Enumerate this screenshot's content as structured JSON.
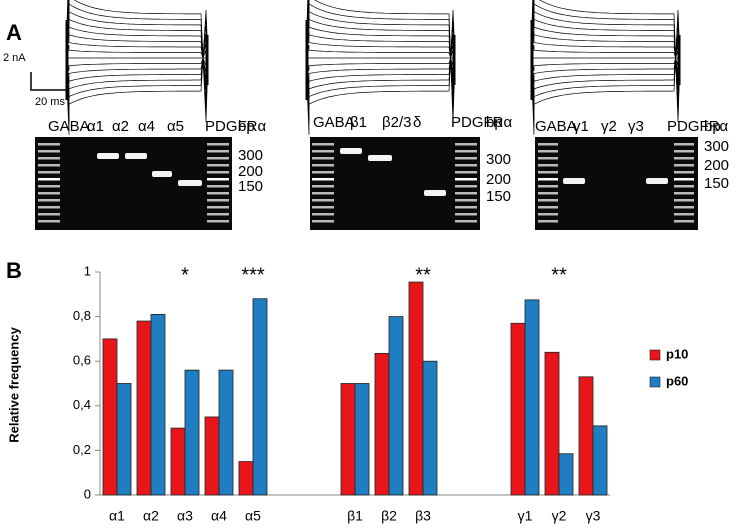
{
  "panels": {
    "a_label": "A",
    "b_label": "B",
    "scale_current": "2 nA",
    "scale_time": "20 ms",
    "gels": [
      {
        "lanes": [
          "GABA",
          "α1",
          "α2",
          "α4",
          "α5",
          "PDGFRα"
        ],
        "unit": "bp",
        "sizes": [
          "300",
          "200",
          "150"
        ]
      },
      {
        "lanes": [
          "GABA",
          "β1",
          "β2/3",
          "δ",
          "PDGFRα"
        ],
        "unit": "bp",
        "sizes": [
          "300",
          "200",
          "150"
        ]
      },
      {
        "lanes": [
          "GABA",
          "γ1",
          "γ2",
          "γ3",
          "PDGFRα"
        ],
        "unit": "bp",
        "sizes": [
          "300",
          "200",
          "150"
        ]
      }
    ]
  },
  "chart_data": {
    "type": "bar",
    "y_label": "Relative frequency",
    "categories": [
      "α1",
      "α2",
      "α3",
      "α4",
      "α5",
      null,
      null,
      "β1",
      "β2",
      "β3",
      null,
      null,
      "γ1",
      "γ2",
      "γ3"
    ],
    "series": [
      {
        "name": "p10",
        "color": "#e8161b",
        "values": [
          0.7,
          0.78,
          0.3,
          0.35,
          0.15,
          null,
          null,
          0.5,
          0.635,
          0.955,
          null,
          null,
          0.77,
          0.64,
          0.53
        ]
      },
      {
        "name": "p60",
        "color": "#1f7ec2",
        "values": [
          0.5,
          0.81,
          0.56,
          0.56,
          0.88,
          null,
          null,
          0.5,
          0.8,
          0.6,
          null,
          null,
          0.875,
          0.185,
          0.31
        ]
      }
    ],
    "ylim": [
      0,
      1
    ],
    "yticks": [
      0,
      {
        "value": 0.2,
        "label": "0,2"
      },
      {
        "value": 0.4,
        "label": "0,4"
      },
      {
        "value": 0.6,
        "label": "0,6"
      },
      {
        "value": 0.8,
        "label": "0,8"
      },
      1
    ],
    "annotations": [
      {
        "text": "*",
        "category": 2
      },
      {
        "text": "***",
        "category": 4
      },
      {
        "text": "**",
        "category": 9
      },
      {
        "text": "**",
        "category": 13
      }
    ],
    "legend": "right"
  }
}
